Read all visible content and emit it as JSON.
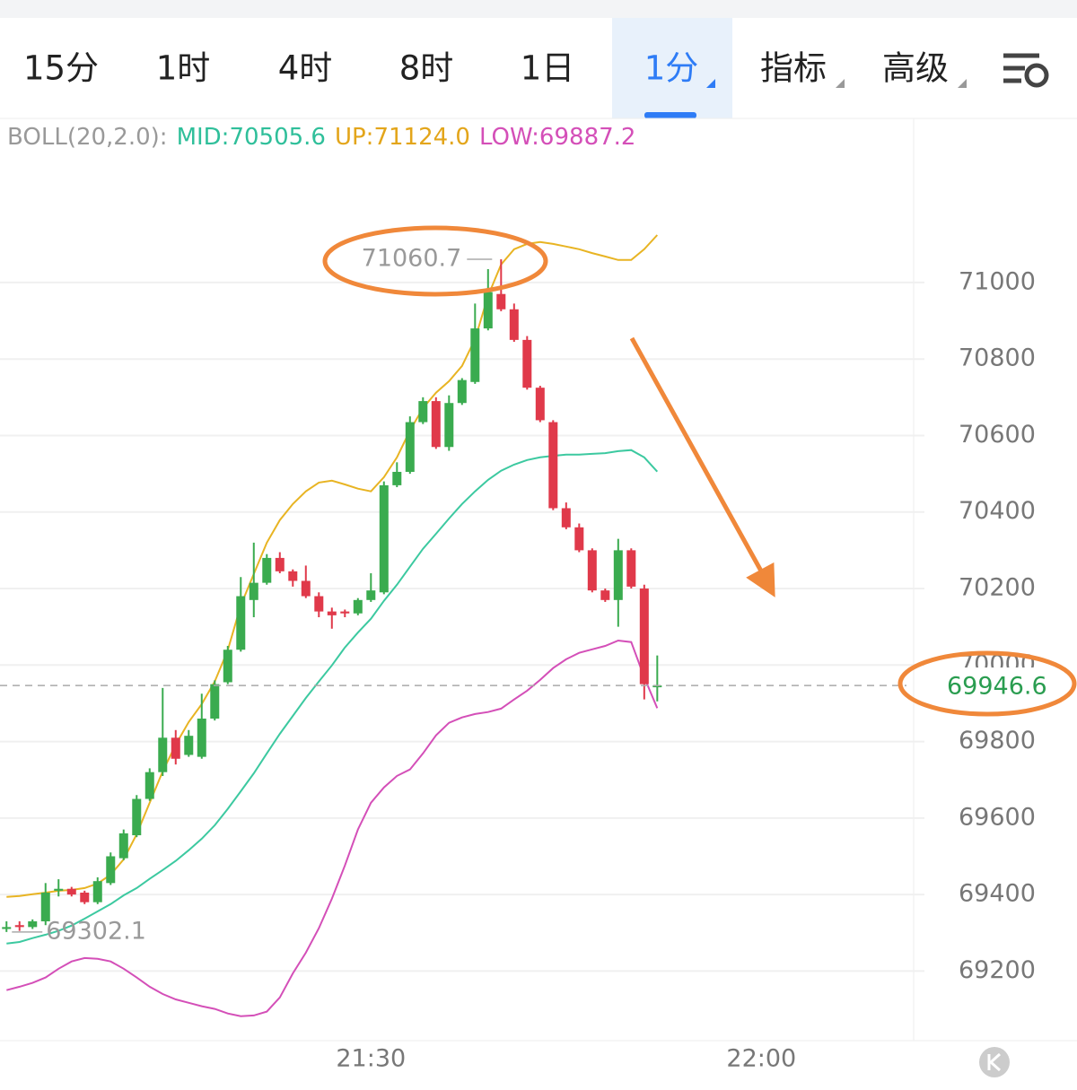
{
  "tabs": [
    "15分",
    "1时",
    "4时",
    "8时",
    "1日",
    "1分",
    "指标",
    "高级"
  ],
  "active_tab": 5,
  "chart_data": {
    "type": "candlestick",
    "indicator": {
      "label": "BOLL(20,2.0):",
      "mid": "MID:70505.6",
      "up": "UP:71124.0",
      "low": "LOW:69887.2"
    },
    "x": [
      "21:02",
      "21:03",
      "21:04",
      "21:05",
      "21:06",
      "21:07",
      "21:08",
      "21:09",
      "21:10",
      "21:11",
      "21:12",
      "21:13",
      "21:14",
      "21:15",
      "21:16",
      "21:17",
      "21:18",
      "21:19",
      "21:20",
      "21:21",
      "21:22",
      "21:23",
      "21:24",
      "21:25",
      "21:26",
      "21:27",
      "21:28",
      "21:29",
      "21:30",
      "21:31",
      "21:32",
      "21:33",
      "21:34",
      "21:35",
      "21:36",
      "21:37",
      "21:38",
      "21:39",
      "21:40",
      "21:41",
      "21:42",
      "21:43",
      "21:44",
      "21:45",
      "21:46",
      "21:47",
      "21:48",
      "21:49",
      "21:50",
      "21:51",
      "21:52"
    ],
    "open": [
      69310,
      69320,
      69315,
      69330,
      69410,
      69415,
      69405,
      69380,
      69430,
      69495,
      69555,
      69650,
      69720,
      69810,
      69765,
      69760,
      69860,
      69955,
      70040,
      70170,
      70215,
      70280,
      70245,
      70220,
      70180,
      70140,
      70140,
      70135,
      70170,
      70190,
      70470,
      70505,
      70635,
      70690,
      70570,
      70685,
      70740,
      70880,
      70970,
      70930,
      70850,
      70725,
      70635,
      70410,
      70360,
      70300,
      70195,
      70170,
      70300,
      70200,
      69945
    ],
    "high": [
      69330,
      69330,
      69335,
      69430,
      69440,
      69420,
      69410,
      69445,
      69510,
      69570,
      69660,
      69730,
      69940,
      69830,
      69830,
      69925,
      69960,
      70050,
      70230,
      70320,
      70290,
      70295,
      70250,
      70260,
      70190,
      70150,
      70145,
      70175,
      70240,
      70480,
      70530,
      70650,
      70700,
      70700,
      70705,
      70750,
      70945,
      71035,
      71060.7,
      70945,
      70860,
      70730,
      70640,
      70425,
      70370,
      70305,
      70200,
      70330,
      70305,
      70210,
      70025
    ],
    "low": [
      69302.1,
      69305,
      69310,
      69320,
      69395,
      69395,
      69375,
      69375,
      69425,
      69490,
      69550,
      69645,
      69710,
      69740,
      69760,
      69755,
      69855,
      69950,
      70035,
      70125,
      70210,
      70240,
      70205,
      70175,
      70125,
      70095,
      70125,
      70130,
      70165,
      70185,
      70465,
      70500,
      70630,
      70565,
      70560,
      70680,
      70735,
      70875,
      70925,
      70845,
      70720,
      70635,
      70405,
      70355,
      70295,
      70190,
      70165,
      70100,
      70200,
      69910,
      69905
    ],
    "close": [
      69315,
      69315,
      69330,
      69405,
      69415,
      69400,
      69380,
      69435,
      69500,
      69560,
      69650,
      69720,
      69810,
      69755,
      69815,
      69860,
      69950,
      70040,
      70180,
      70215,
      70280,
      70245,
      70220,
      70180,
      70140,
      70130,
      70135,
      70170,
      70195,
      70470,
      70505,
      70635,
      70690,
      70570,
      70685,
      70745,
      70880,
      70975,
      70930,
      70850,
      70725,
      70640,
      70410,
      70360,
      70300,
      70195,
      70170,
      70300,
      70205,
      69950,
      69946.6
    ],
    "up_color": "#3aab4f",
    "down_color": "#e0394a",
    "lines": [
      {
        "color": "#3cc9a0",
        "values": [
          69272,
          69276,
          69286,
          69295,
          69305,
          69319,
          69337,
          69356,
          69375,
          69398,
          69417,
          69441,
          69464,
          69488,
          69516,
          69546,
          69581,
          69624,
          69670,
          69717,
          69769,
          69820,
          69867,
          69914,
          69957,
          69999,
          70046,
          70085,
          70121,
          70168,
          70210,
          70257,
          70304,
          70343,
          70383,
          70421,
          70454,
          70484,
          70508,
          70524,
          70536,
          70543,
          70547,
          70550,
          70550,
          70552,
          70554,
          70559,
          70562,
          70543,
          70505.6
        ]
      },
      {
        "color": "#e8b423",
        "values": [
          69394,
          69396,
          69401,
          69405,
          69410,
          69412,
          69417,
          69429,
          69452,
          69492,
          69558,
          69640,
          69722,
          69792,
          69851,
          69898,
          69957,
          70039,
          70156,
          70238,
          70320,
          70379,
          70421,
          70454,
          70477,
          70482,
          70472,
          70461,
          70454,
          70491,
          70543,
          70613,
          70672,
          70712,
          70742,
          70782,
          70852,
          70965,
          71047,
          71087,
          71101,
          71106,
          71101,
          71094,
          71087,
          71077,
          71068,
          71059,
          71059,
          71087,
          71124
        ]
      },
      {
        "color": "#d44fb8",
        "values": [
          69150,
          69159,
          69169,
          69183,
          69206,
          69225,
          69234,
          69232,
          69225,
          69206,
          69183,
          69159,
          69140,
          69126,
          69117,
          69108,
          69101,
          69089,
          69082,
          69084,
          69094,
          69131,
          69194,
          69248,
          69312,
          69389,
          69476,
          69570,
          69640,
          69680,
          69710,
          69727,
          69769,
          69816,
          69849,
          69863,
          69872,
          69877,
          69886,
          69910,
          69933,
          69961,
          69992,
          70015,
          70032,
          70041,
          70050,
          70064,
          70060,
          69968,
          69887.2
        ]
      }
    ],
    "annotations": [
      {
        "x": "21:40",
        "value": 71060.7,
        "side": "left"
      },
      {
        "x": "21:02",
        "value": 69302.1,
        "side": "right"
      }
    ],
    "last_price": 69946.6,
    "last_price_color": "#2a9d50",
    "xlim": [
      "21:01:30",
      "22:11:42"
    ],
    "xticks": [
      "21:30",
      "22:00"
    ],
    "ylim": [
      69018,
      71429
    ],
    "yticks": [
      69200,
      69400,
      69600,
      69800,
      70000,
      70200,
      70400,
      70600,
      70800,
      71000
    ],
    "grid": true
  }
}
